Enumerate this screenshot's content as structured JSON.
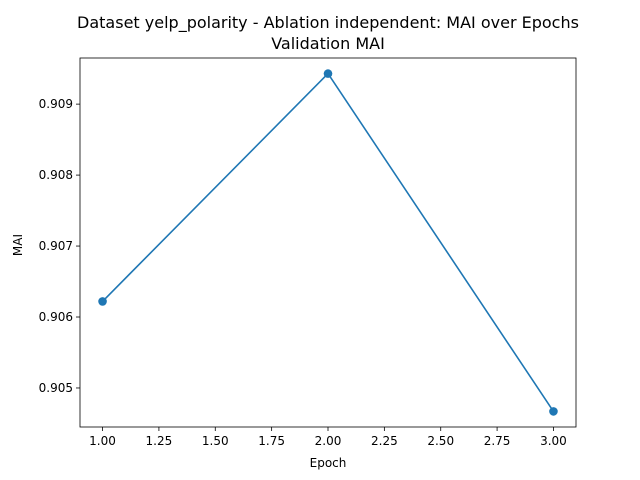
{
  "chart_data": {
    "type": "line",
    "title_line1": "Dataset yelp_polarity - Ablation independent: MAI over Epochs",
    "title_line2": "Validation MAI",
    "xlabel": "Epoch",
    "ylabel": "MAI",
    "x": [
      1.0,
      2.0,
      3.0
    ],
    "series": [
      {
        "values": [
          0.90622,
          0.90943,
          0.90467
        ],
        "color": "#1f77b4",
        "marker": "circle"
      }
    ],
    "xlim": [
      0.9,
      3.1
    ],
    "ylim": [
      0.90445,
      0.90965
    ],
    "xticks": [
      1.0,
      1.25,
      1.5,
      1.75,
      2.0,
      2.25,
      2.5,
      2.75,
      3.0
    ],
    "xtick_labels": [
      "1.00",
      "1.25",
      "1.50",
      "1.75",
      "2.00",
      "2.25",
      "2.50",
      "2.75",
      "3.00"
    ],
    "yticks": [
      0.905,
      0.906,
      0.907,
      0.908,
      0.909
    ],
    "ytick_labels": [
      "0.905",
      "0.906",
      "0.907",
      "0.908",
      "0.909"
    ],
    "grid": false,
    "legend": "none"
  }
}
